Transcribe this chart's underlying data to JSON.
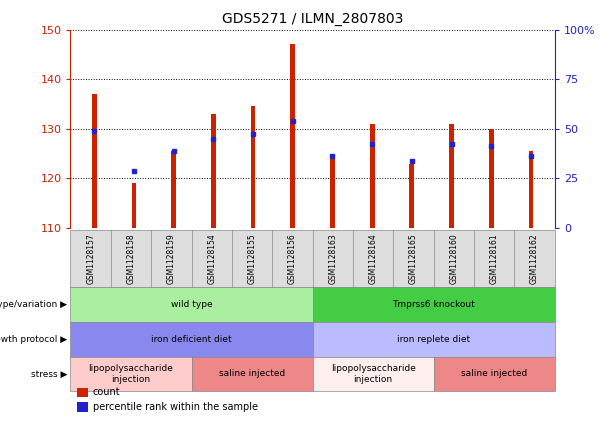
{
  "title": "GDS5271 / ILMN_2807803",
  "samples": [
    "GSM1128157",
    "GSM1128158",
    "GSM1128159",
    "GSM1128154",
    "GSM1128155",
    "GSM1128156",
    "GSM1128163",
    "GSM1128164",
    "GSM1128165",
    "GSM1128160",
    "GSM1128161",
    "GSM1128162"
  ],
  "count_values": [
    137,
    119,
    125.5,
    133,
    134.5,
    147,
    124.5,
    131,
    123,
    131,
    130,
    125.5
  ],
  "percentile_values": [
    129.5,
    121.5,
    125.5,
    128,
    129,
    131.5,
    124.5,
    127,
    123.5,
    127,
    126.5,
    124.5
  ],
  "ylim_left": [
    110,
    150
  ],
  "ylim_right": [
    0,
    100
  ],
  "yticks_left": [
    110,
    120,
    130,
    140,
    150
  ],
  "yticks_right": [
    0,
    25,
    50,
    75,
    100
  ],
  "ytick_labels_right": [
    "0",
    "25",
    "50",
    "75",
    "100%"
  ],
  "bar_color": "#CC2200",
  "dot_color": "#2222CC",
  "bar_width": 0.12,
  "annotation_rows": [
    {
      "label": "genotype/variation",
      "cells": [
        {
          "text": "wild type",
          "colspan": 6,
          "facecolor": "#AAEEA0",
          "edgecolor": "#888888"
        },
        {
          "text": "Tmprss6 knockout",
          "colspan": 6,
          "facecolor": "#44CC44",
          "edgecolor": "#888888"
        }
      ]
    },
    {
      "label": "growth protocol",
      "cells": [
        {
          "text": "iron deficient diet",
          "colspan": 6,
          "facecolor": "#8888EE",
          "edgecolor": "#888888"
        },
        {
          "text": "iron replete diet",
          "colspan": 6,
          "facecolor": "#BBBBFF",
          "edgecolor": "#888888"
        }
      ]
    },
    {
      "label": "stress",
      "cells": [
        {
          "text": "lipopolysaccharide\ninjection",
          "colspan": 3,
          "facecolor": "#FFCCCC",
          "edgecolor": "#888888"
        },
        {
          "text": "saline injected",
          "colspan": 3,
          "facecolor": "#EE8888",
          "edgecolor": "#888888"
        },
        {
          "text": "lipopolysaccharide\ninjection",
          "colspan": 3,
          "facecolor": "#FFEEEE",
          "edgecolor": "#888888"
        },
        {
          "text": "saline injected",
          "colspan": 3,
          "facecolor": "#EE8888",
          "edgecolor": "#888888"
        }
      ]
    }
  ],
  "legend_items": [
    {
      "label": "count",
      "color": "#CC2200"
    },
    {
      "label": "percentile rank within the sample",
      "color": "#2222CC"
    }
  ],
  "left_axis_color": "#CC2200",
  "right_axis_color": "#2222CC",
  "xlabel_bg": "#CCCCCC"
}
